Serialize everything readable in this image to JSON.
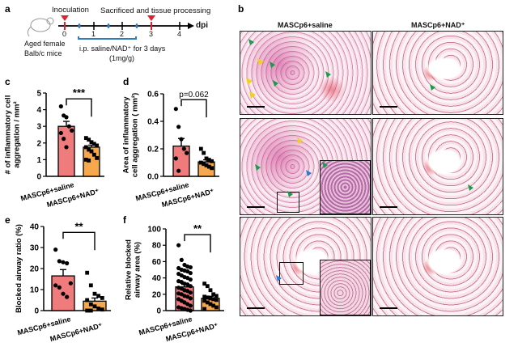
{
  "panel_labels": {
    "a": "a",
    "b": "b",
    "c": "c",
    "d": "d",
    "e": "e",
    "f": "f"
  },
  "timeline": {
    "inoculation": "Inoculation",
    "sacrificed": "Sacrificed and tissue processing",
    "ticks": [
      "0",
      "1",
      "2",
      "3",
      "4"
    ],
    "unit": "dpi",
    "mice": [
      "Aged female",
      "Balb/c mice"
    ],
    "treatment": [
      "i.p. saline/NAD⁺ for 3 days",
      "(1mg/g)"
    ],
    "colors": {
      "marker": "#e0202a",
      "dose": "#2e7bc0"
    }
  },
  "histology": {
    "columns": [
      "MASCp6+saline",
      "MASCp6+NAD⁺"
    ],
    "arrow_colors": {
      "green": "#1a9a4a",
      "yellow": "#f0d020",
      "blue": "#2a7ad0"
    }
  },
  "colors": {
    "saline": "#f07b7d",
    "nad": "#f6a84e"
  },
  "chart_data": [
    {
      "id": "c",
      "type": "bar",
      "categories": [
        "MASCp6+saline",
        "MASCp6+NAD⁺"
      ],
      "ylabel": [
        "# of inflammatory cell",
        "aggregation / mm²"
      ],
      "ylim": [
        0,
        5
      ],
      "yticks": [
        0,
        1,
        2,
        3,
        4,
        5
      ],
      "means": [
        3.0,
        1.75
      ],
      "sem": [
        0.3,
        0.12
      ],
      "points": [
        [
          4.2,
          3.65,
          3.55,
          3.0,
          2.75,
          2.6,
          2.25,
          1.75
        ],
        [
          2.3,
          2.2,
          2.05,
          1.95,
          1.85,
          1.75,
          1.6,
          1.5,
          1.3,
          1.1,
          1.0,
          0.95
        ]
      ],
      "significance": "***"
    },
    {
      "id": "d",
      "type": "bar",
      "categories": [
        "MASCp6+saline",
        "MASCp6+NAD⁺"
      ],
      "ylabel": [
        "Area of inflammatory",
        "cell aggregation ( mm²)"
      ],
      "ylim": [
        0,
        0.6
      ],
      "yticks": [
        0.0,
        0.2,
        0.4,
        0.6
      ],
      "ytick_labels": [
        "0.0",
        "0.2",
        "0.4",
        "0.6"
      ],
      "means": [
        0.22,
        0.105
      ],
      "sem": [
        0.055,
        0.015
      ],
      "points": [
        [
          0.49,
          0.36,
          0.27,
          0.2,
          0.17,
          0.13,
          0.04
        ],
        [
          0.2,
          0.17,
          0.13,
          0.12,
          0.11,
          0.1,
          0.09,
          0.08,
          0.07,
          0.06
        ]
      ],
      "significance": "p=0.062"
    },
    {
      "id": "e",
      "type": "bar",
      "categories": [
        "MASCp6+saline",
        "MASCp6+NAD⁺"
      ],
      "ylabel": [
        "Blocked airway ratio (%)"
      ],
      "ylim": [
        0,
        40
      ],
      "yticks": [
        0,
        10,
        20,
        30,
        40
      ],
      "means": [
        16.5,
        4.5
      ],
      "sem": [
        3.0,
        1.5
      ],
      "points": [
        [
          29,
          23.5,
          23,
          22.5,
          13,
          12,
          11,
          8,
          6.5
        ],
        [
          18,
          12,
          8,
          7,
          6,
          5,
          3,
          2,
          1,
          0.5,
          0,
          0
        ]
      ],
      "significance": "**"
    },
    {
      "id": "f",
      "type": "bar",
      "categories": [
        "MASCp6+saline",
        "MASCp6+NAD⁺"
      ],
      "ylabel": [
        "Relative blocked",
        "airway area (%)"
      ],
      "ylim": [
        0,
        100
      ],
      "yticks": [
        0,
        20,
        40,
        60,
        80,
        100
      ],
      "means": [
        29,
        15
      ],
      "sem": [
        3,
        2.5
      ],
      "points": [
        [
          80,
          62,
          56,
          54,
          53,
          52,
          50,
          49,
          48,
          46,
          45,
          43,
          41,
          40,
          38,
          36,
          35,
          33,
          32,
          30,
          28,
          27,
          25,
          24,
          22,
          21,
          20,
          18,
          17,
          15,
          14,
          12,
          10,
          8,
          6,
          4,
          3,
          2,
          1,
          0
        ],
        [
          33,
          30,
          25,
          20,
          18,
          17,
          16,
          15,
          14,
          13,
          12,
          10,
          8,
          6,
          4,
          2
        ]
      ],
      "significance": "**"
    }
  ]
}
